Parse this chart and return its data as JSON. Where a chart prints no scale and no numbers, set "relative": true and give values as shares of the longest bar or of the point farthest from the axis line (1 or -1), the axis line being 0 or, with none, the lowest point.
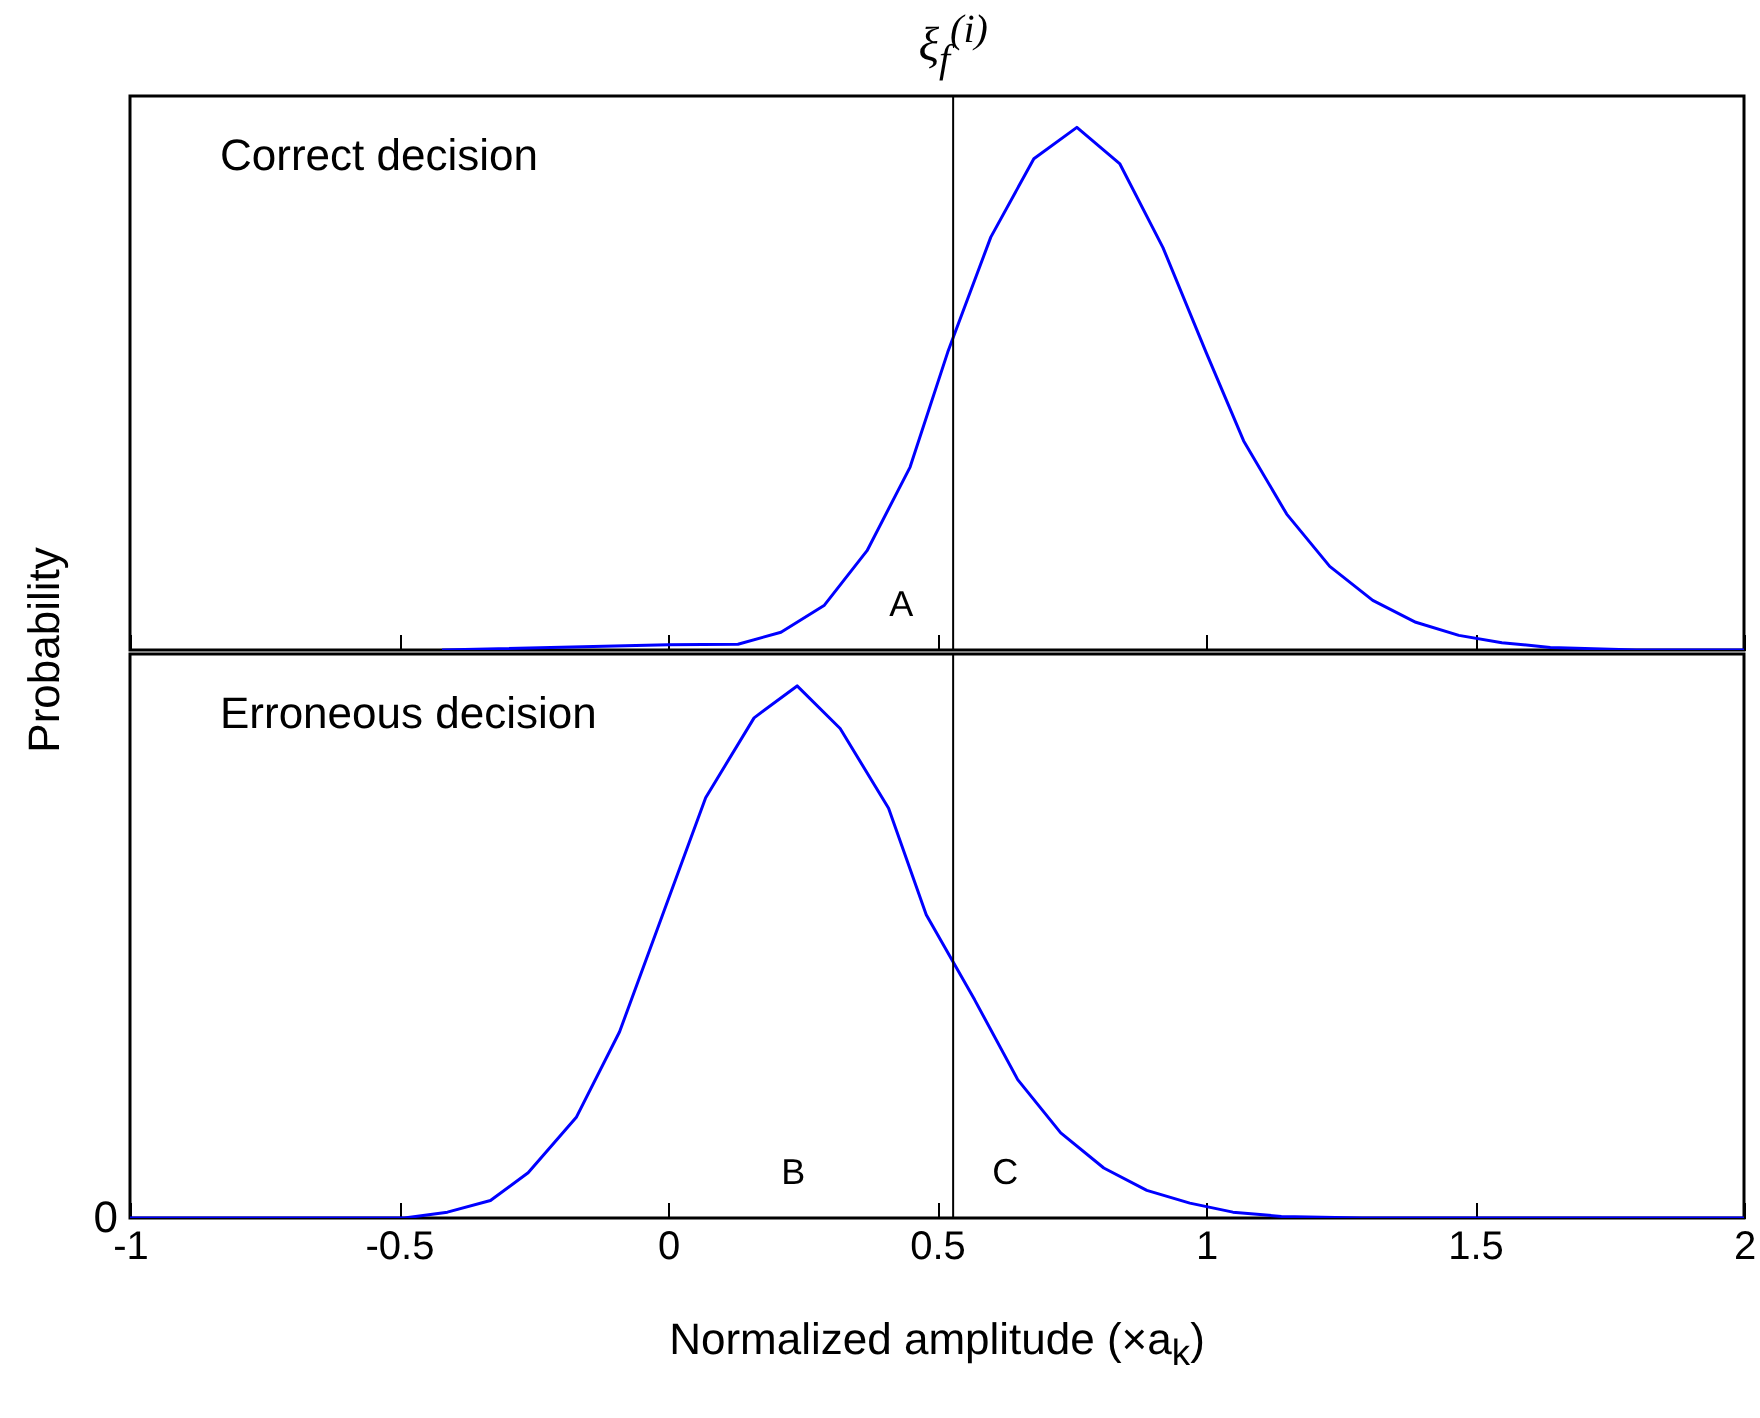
{
  "chart_data": [
    {
      "type": "line",
      "relative": true,
      "ylabel": "Probability",
      "xlim": [
        -1,
        2
      ],
      "xticks": [
        -1,
        -0.5,
        0,
        0.5,
        1,
        1.5,
        2
      ],
      "tick_labels": false,
      "grid": false,
      "x": [
        -0.42,
        0.0,
        0.13,
        0.21,
        0.29,
        0.37,
        0.45,
        0.52,
        0.6,
        0.68,
        0.76,
        0.84,
        0.92,
        1.0,
        1.07,
        1.15,
        1.23,
        1.31,
        1.39,
        1.47,
        1.55,
        1.64,
        1.8,
        2.0
      ],
      "series": [
        {
          "color": "#0000ff",
          "values": [
            0,
            0.01,
            0.011,
            0.034,
            0.085,
            0.19,
            0.35,
            0.57,
            0.79,
            0.94,
            1.0,
            0.93,
            0.77,
            0.57,
            0.4,
            0.26,
            0.16,
            0.095,
            0.053,
            0.028,
            0.014,
            0.005,
            0,
            0
          ]
        }
      ],
      "ref_lines": [
        {
          "axis": "x",
          "value": 0.53,
          "label": "ξ$_{f}$$^{(i)}$",
          "color": "#000000"
        }
      ],
      "annotations": [
        "Correct decision",
        "A"
      ]
    },
    {
      "type": "line",
      "relative": true,
      "xlabel": "Normalized amplitude  (×a$_{k}$)",
      "xlim": [
        -1,
        2
      ],
      "xticks": [
        -1,
        -0.5,
        0,
        0.5,
        1,
        1.5,
        2
      ],
      "tick_labels": "x",
      "grid": false,
      "x": [
        -1.0,
        -0.49,
        -0.41,
        -0.33,
        -0.26,
        -0.17,
        -0.09,
        -0.01,
        0.07,
        0.16,
        0.24,
        0.32,
        0.41,
        0.48,
        0.57,
        0.65,
        0.73,
        0.81,
        0.89,
        0.97,
        1.05,
        1.14,
        1.29,
        2.0
      ],
      "series": [
        {
          "color": "#0000ff",
          "values": [
            0,
            0,
            0.011,
            0.033,
            0.085,
            0.19,
            0.35,
            0.57,
            0.79,
            0.94,
            1.0,
            0.92,
            0.77,
            0.57,
            0.41,
            0.26,
            0.16,
            0.094,
            0.052,
            0.028,
            0.011,
            0.003,
            0,
            0
          ]
        }
      ],
      "ref_lines": [
        {
          "axis": "x",
          "value": 0.53,
          "color": "#000000"
        }
      ],
      "annotations": [
        "Erroneous decision",
        "B",
        "C",
        {
          "text": "0",
          "x": -1,
          "y": 0
        }
      ]
    }
  ]
}
